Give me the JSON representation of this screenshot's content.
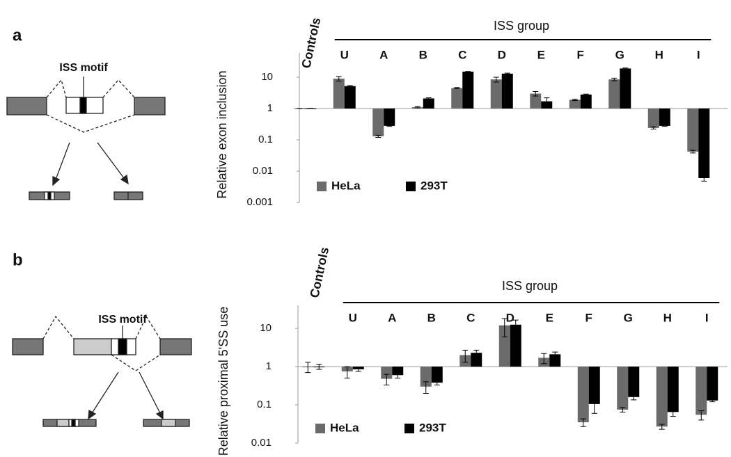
{
  "chart_data": [
    {
      "type": "bar",
      "panel_label": "a",
      "diagram_label": "ISS motif",
      "group_label": "ISS group",
      "ylabel": "Relative exon inclusion",
      "yscale": "log",
      "legend": "lower left",
      "categories": [
        "Controls",
        "U",
        "A",
        "B",
        "C",
        "D",
        "E",
        "F",
        "G",
        "H",
        "I"
      ],
      "series": [
        {
          "name": "HeLa",
          "color": "#6b6b6b",
          "values": [
            1,
            9,
            0.13,
            1.1,
            4.5,
            8.5,
            3,
            1.9,
            8.5,
            0.24,
            0.042
          ],
          "errors": [
            0,
            1.5,
            0.01,
            0.05,
            0.2,
            1.5,
            0.5,
            0.1,
            0.8,
            0.02,
            0.004
          ]
        },
        {
          "name": "293T",
          "color": "#000000",
          "values": [
            1,
            5.2,
            0.28,
            2.1,
            15,
            13,
            1.7,
            2.8,
            19,
            0.28,
            0.006
          ],
          "errors": [
            0,
            0.2,
            0.01,
            0.1,
            0.3,
            0.5,
            0.5,
            0.1,
            0.7,
            0.01,
            0.0012
          ]
        }
      ],
      "ylim": [
        0.001,
        60
      ],
      "yticks": [
        0.001,
        0.01,
        0.1,
        1,
        10
      ]
    },
    {
      "type": "bar",
      "panel_label": "b",
      "diagram_label": "ISS motif",
      "group_label": "ISS group",
      "ylabel": "Relative proximal 5'SS use",
      "yscale": "log",
      "legend": "lower left",
      "categories": [
        "Controls",
        "U",
        "A",
        "B",
        "C",
        "D",
        "E",
        "F",
        "G",
        "H",
        "I"
      ],
      "series": [
        {
          "name": "HeLa",
          "color": "#6b6b6b",
          "values": [
            1,
            0.75,
            0.48,
            0.3,
            2.0,
            12,
            1.7,
            0.035,
            0.075,
            0.027,
            0.055
          ],
          "errors": [
            0.3,
            0.25,
            0.15,
            0.1,
            0.7,
            6,
            0.5,
            0.008,
            0.01,
            0.004,
            0.015
          ]
        },
        {
          "name": "293T",
          "color": "#000000",
          "values": [
            1,
            0.85,
            0.6,
            0.38,
            2.3,
            12.5,
            2.1,
            0.105,
            0.16,
            0.065,
            0.13
          ],
          "errors": [
            0.15,
            0.1,
            0.1,
            0.05,
            0.4,
            4,
            0.3,
            0.045,
            0.025,
            0.015,
            0.01
          ]
        }
      ],
      "ylim": [
        0.01,
        40
      ],
      "yticks": [
        0.01,
        0.1,
        1,
        10
      ]
    }
  ]
}
